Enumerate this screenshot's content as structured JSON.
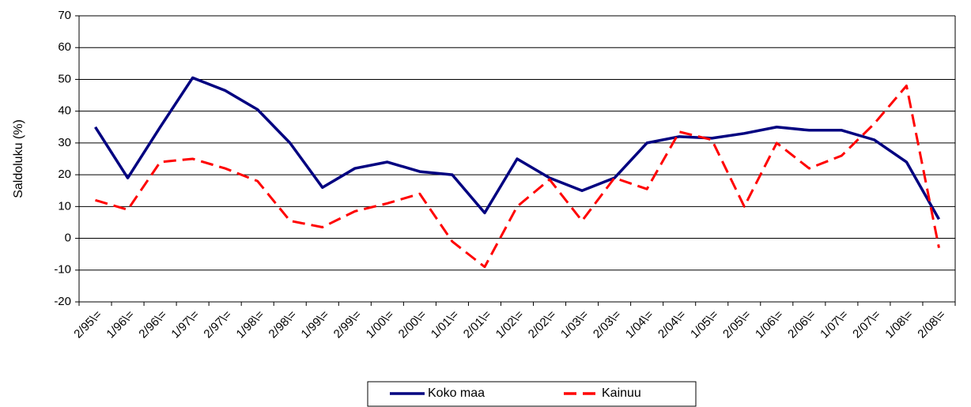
{
  "chart_data": {
    "type": "line",
    "ylabel": "Saldoluku (%)",
    "categories": [
      "2/95\\=",
      "1/96\\=",
      "2/96\\=",
      "1/97\\=",
      "2/97\\=",
      "1/98\\=",
      "2/98\\=",
      "1/99\\=",
      "2/99\\=",
      "1/00\\=",
      "2/00\\=",
      "1/01\\=",
      "2/01\\=",
      "1/02\\=",
      "2/02\\=",
      "1/03\\=",
      "2/03\\=",
      "1/04\\=",
      "2/04\\=",
      "1/05\\=",
      "2/05\\=",
      "1/06\\=",
      "2/06\\=",
      "1/07\\=",
      "2/07\\=",
      "1/08\\=",
      "2/08\\="
    ],
    "series": [
      {
        "name": "Koko maa",
        "color": "#000080",
        "dash": false,
        "values": [
          35,
          19,
          35,
          50.5,
          46.5,
          40.5,
          30,
          16,
          22,
          24,
          21,
          20,
          8,
          25,
          19,
          15,
          19,
          30,
          32,
          31.5,
          33,
          35,
          34,
          34,
          31,
          24,
          6
        ]
      },
      {
        "name": "Kainuu",
        "color": "#ff0000",
        "dash": true,
        "values": [
          12,
          9,
          24,
          25,
          22,
          18,
          5.5,
          3.5,
          8.5,
          11,
          14,
          -1,
          -9,
          10,
          18.5,
          5.5,
          19,
          15.5,
          33.5,
          31,
          10,
          30,
          22,
          26,
          36,
          48,
          -3
        ]
      }
    ],
    "ylim": [
      -20,
      70
    ],
    "yticks": [
      -20,
      -10,
      0,
      10,
      20,
      30,
      40,
      50,
      60,
      70
    ],
    "grid": true,
    "legend": "bottom"
  }
}
